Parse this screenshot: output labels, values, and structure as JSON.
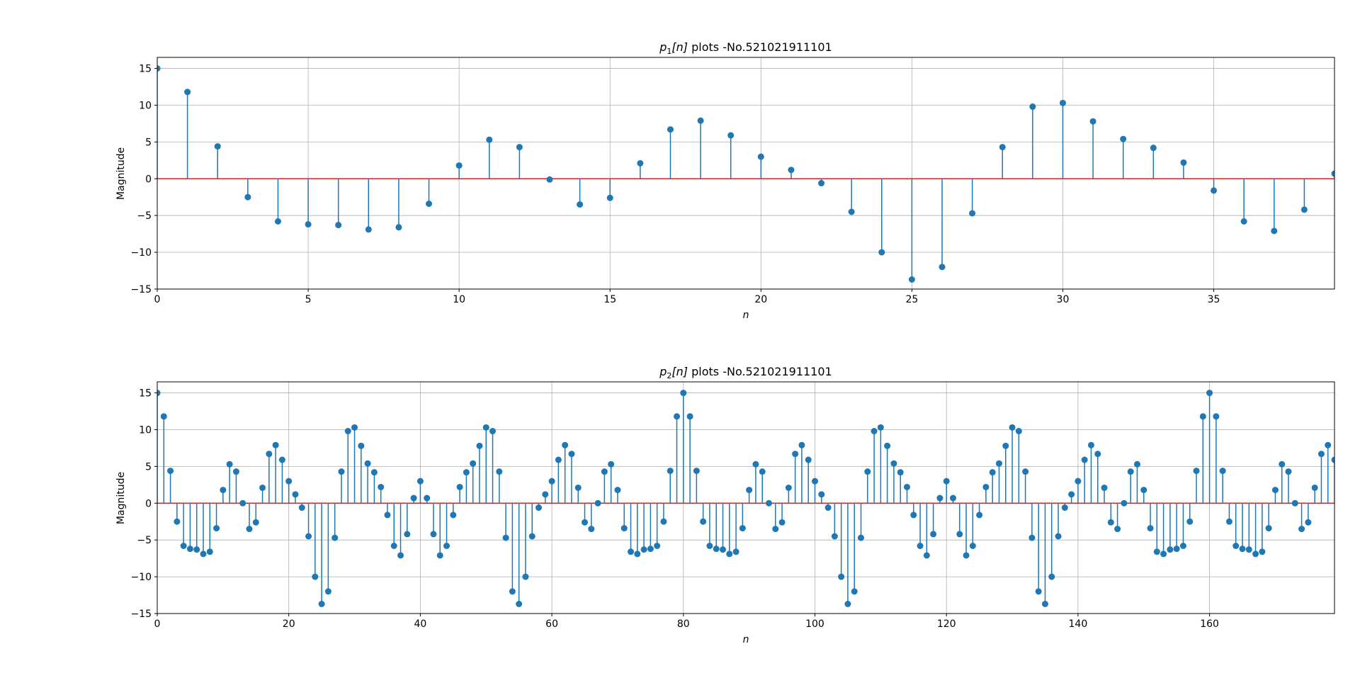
{
  "chart_data": [
    {
      "type": "stem",
      "title_sym": "p",
      "title_sub": "1",
      "title_arg": "[n]",
      "title_rest": " plots -No.521021911101",
      "xlabel": "n",
      "ylabel": "Magnitude",
      "xlim": [
        0,
        39
      ],
      "ylim": [
        -15,
        16.5
      ],
      "xticks": [
        0,
        5,
        10,
        15,
        20,
        25,
        30,
        35
      ],
      "yticks": [
        -15,
        -10,
        -5,
        0,
        5,
        10,
        15
      ],
      "grid": true,
      "colors": {
        "stem": "#1f77b4",
        "baseline": "#d62728"
      },
      "x_start": 0,
      "values": [
        15,
        11.8,
        4.4,
        -2.5,
        -5.8,
        -6.2,
        -6.3,
        -6.9,
        -6.6,
        -3.4,
        1.8,
        5.3,
        4.3,
        -0.1,
        -3.5,
        -2.6,
        2.1,
        6.7,
        7.9,
        5.9,
        3.0,
        1.2,
        -0.6,
        -4.5,
        -10.0,
        -13.7,
        -12.0,
        -4.7,
        4.3,
        9.8,
        10.3,
        7.8,
        5.4,
        4.2,
        2.2,
        -1.6,
        -5.8,
        -7.1,
        -4.2,
        0.7
      ]
    },
    {
      "type": "stem",
      "title_sym": "p",
      "title_sub": "2",
      "title_arg": "[n]",
      "title_rest": " plots -No.521021911101",
      "xlabel": "n",
      "ylabel": "Magnitude",
      "xlim": [
        0,
        179
      ],
      "ylim": [
        -15,
        16.5
      ],
      "xticks": [
        0,
        20,
        40,
        60,
        80,
        100,
        120,
        140,
        160
      ],
      "yticks": [
        -15,
        -10,
        -5,
        0,
        5,
        10,
        15
      ],
      "grid": true,
      "colors": {
        "stem": "#1f77b4",
        "baseline": "#d62728"
      },
      "x_start": 0,
      "values": [
        15,
        11.8,
        4.4,
        -2.5,
        -5.8,
        -6.2,
        -6.3,
        -6.9,
        -6.6,
        -3.4,
        1.8,
        5.3,
        4.3,
        0.0,
        -3.5,
        -2.6,
        2.1,
        6.7,
        7.9,
        5.9,
        3.0,
        1.2,
        -0.6,
        -4.5,
        -10.0,
        -13.7,
        -12.0,
        -4.7,
        4.3,
        9.8,
        10.3,
        7.8,
        5.4,
        4.2,
        2.2,
        -1.6,
        -5.8,
        -7.1,
        -4.2,
        0.7,
        3.0,
        0.7,
        -4.2,
        -7.1,
        -5.8,
        -1.6,
        2.2,
        4.2,
        5.4,
        7.8,
        10.3,
        9.8,
        4.3,
        -4.7,
        -12.0,
        -13.7,
        -10.0,
        -4.5,
        -0.6,
        1.2,
        3.0,
        5.9,
        7.9,
        6.7,
        2.1,
        -2.6,
        -3.5,
        0.0,
        4.3,
        5.3,
        1.8,
        -3.4,
        -6.6,
        -6.9,
        -6.3,
        -6.2,
        -5.8,
        -2.5,
        4.4,
        11.8,
        15,
        11.8,
        4.4,
        -2.5,
        -5.8,
        -6.2,
        -6.3,
        -6.9,
        -6.6,
        -3.4,
        1.8,
        5.3,
        4.3,
        0.0,
        -3.5,
        -2.6,
        2.1,
        6.7,
        7.9,
        5.9,
        3.0,
        1.2,
        -0.6,
        -4.5,
        -10.0,
        -13.7,
        -12.0,
        -4.7,
        4.3,
        9.8,
        10.3,
        7.8,
        5.4,
        4.2,
        2.2,
        -1.6,
        -5.8,
        -7.1,
        -4.2,
        0.7,
        3.0,
        0.7,
        -4.2,
        -7.1,
        -5.8,
        -1.6,
        2.2,
        4.2,
        5.4,
        7.8,
        10.3,
        9.8,
        4.3,
        -4.7,
        -12.0,
        -13.7,
        -10.0,
        -4.5,
        -0.6,
        1.2,
        3.0,
        5.9,
        7.9,
        6.7,
        2.1,
        -2.6,
        -3.5,
        0.0,
        4.3,
        5.3,
        1.8,
        -3.4,
        -6.6,
        -6.9,
        -6.3,
        -6.2,
        -5.8,
        -2.5,
        4.4,
        11.8,
        15,
        11.8,
        4.4,
        -2.5,
        -5.8,
        -6.2,
        -6.3,
        -6.9,
        -6.6,
        -3.4,
        1.8,
        5.3,
        4.3,
        0.0,
        -3.5,
        -2.6,
        2.1,
        6.7,
        7.9,
        5.9
      ]
    }
  ]
}
